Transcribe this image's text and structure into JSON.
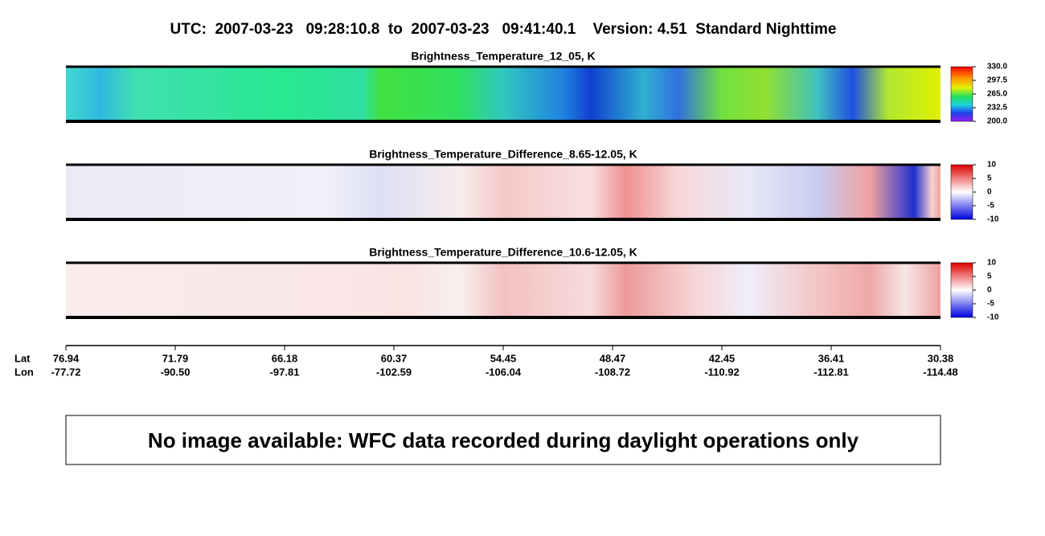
{
  "header": {
    "title": "UTC:  2007-03-23   09:28:10.8  to  2007-03-23   09:41:40.1    Version: 4.51  Standard Nighttime"
  },
  "panels": [
    {
      "title": "Brightness_Temperature_12_05, K",
      "colorbar": {
        "lim": [
          200,
          330
        ],
        "ticks": [
          {
            "value": 330,
            "label": "330.0"
          },
          {
            "value": 297.5,
            "label": "297.5"
          },
          {
            "value": 265,
            "label": "265.0"
          },
          {
            "value": 232.5,
            "label": "232.5"
          },
          {
            "value": 200,
            "label": "200.0"
          }
        ]
      }
    },
    {
      "title": "Brightness_Temperature_Difference_8.65-12.05, K",
      "colorbar": {
        "lim": [
          -10,
          10
        ],
        "ticks": [
          10,
          5,
          0,
          -5,
          -10
        ]
      }
    },
    {
      "title": "Brightness_Temperature_Difference_10.6-12.05, K",
      "colorbar": {
        "lim": [
          -10,
          10
        ],
        "ticks": [
          10,
          5,
          0,
          -5,
          -10
        ]
      }
    }
  ],
  "track": {
    "lat_label": "Lat",
    "lon_label": "Lon",
    "ticks": [
      {
        "lat": "76.94",
        "lon": "-77.72"
      },
      {
        "lat": "71.79",
        "lon": "-90.50"
      },
      {
        "lat": "66.18",
        "lon": "-97.81"
      },
      {
        "lat": "60.37",
        "lon": "-102.59"
      },
      {
        "lat": "54.45",
        "lon": "-106.04"
      },
      {
        "lat": "48.47",
        "lon": "-108.72"
      },
      {
        "lat": "42.45",
        "lon": "-110.92"
      },
      {
        "lat": "36.41",
        "lon": "-112.81"
      },
      {
        "lat": "30.38",
        "lon": "-114.48"
      }
    ]
  },
  "notice": "No image available: WFC data recorded during daylight operations only"
}
